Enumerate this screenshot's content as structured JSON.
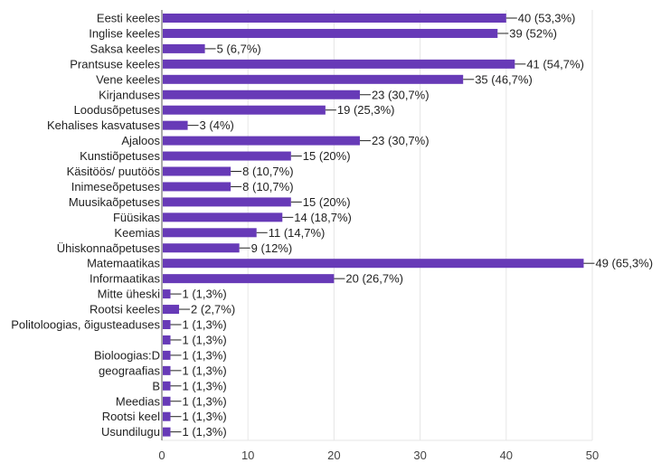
{
  "chart_data": {
    "type": "bar",
    "orientation": "horizontal",
    "title": "",
    "xlabel": "",
    "ylabel": "",
    "xlim": [
      0,
      50
    ],
    "x_ticks": [
      0,
      10,
      20,
      30,
      40,
      50
    ],
    "grid": true,
    "colors": {
      "bar": "#673ab7",
      "grid": "#e6e6e6",
      "axis": "#444444",
      "text": "#222222",
      "connector": "#222222"
    },
    "categories": [
      "Eesti keeles",
      "Inglise keeles",
      "Saksa keeles",
      "Prantsuse keeles",
      "Vene keeles",
      "Kirjanduses",
      "Loodusõpetuses",
      "Kehalises kasvatuses",
      "Ajaloos",
      "Kunstiõpetuses",
      "Käsitöös/ puutöös",
      "Inimeseõpetuses",
      "Muusikaõpetuses",
      "Füüsikas",
      "Keemias",
      "Ühiskonnaõpetuses",
      "Matemaatikas",
      "Informaatikas",
      "Mitte üheski",
      "Rootsi keeles",
      "Politoloogias, õigusteaduses",
      "",
      "Bioloogias:D",
      "geograafias",
      "B",
      "Meedias",
      "Rootsi keel",
      "Usundilugu"
    ],
    "values": [
      40,
      39,
      5,
      41,
      35,
      23,
      19,
      3,
      23,
      15,
      8,
      8,
      15,
      14,
      11,
      9,
      49,
      20,
      1,
      2,
      1,
      1,
      1,
      1,
      1,
      1,
      1,
      1
    ],
    "data_labels": [
      "40 (53,3%)",
      "39 (52%)",
      "5 (6,7%)",
      "41 (54,7%)",
      "35 (46,7%)",
      "23 (30,7%)",
      "19 (25,3%)",
      "3 (4%)",
      "23 (30,7%)",
      "15 (20%)",
      "8 (10,7%)",
      "8 (10,7%)",
      "15 (20%)",
      "14 (18,7%)",
      "11 (14,7%)",
      "9 (12%)",
      "49 (65,3%)",
      "20 (26,7%)",
      "1 (1,3%)",
      "2 (2,7%)",
      "1 (1,3%)",
      "1 (1,3%)",
      "1 (1,3%)",
      "1 (1,3%)",
      "1 (1,3%)",
      "1 (1,3%)",
      "1 (1,3%)",
      "1 (1,3%)"
    ]
  }
}
